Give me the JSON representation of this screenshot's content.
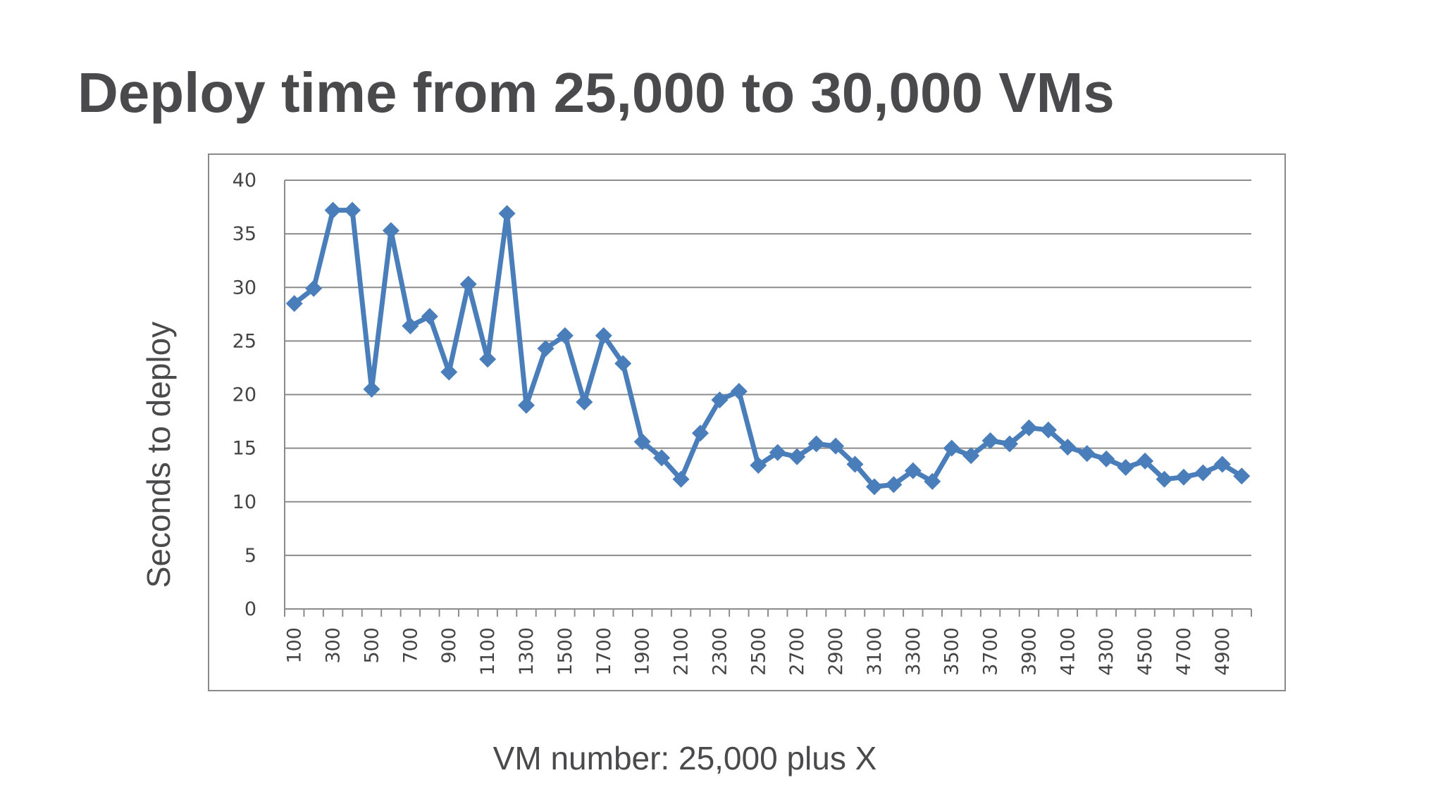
{
  "chart_data": {
    "type": "line",
    "title": "Deploy time from 25,000 to 30,000 VMs",
    "xlabel": "VM number: 25,000 plus X",
    "ylabel": "Seconds to deploy",
    "ylim": [
      0,
      40
    ],
    "yticks": [
      0,
      5,
      10,
      15,
      20,
      25,
      30,
      35,
      40
    ],
    "grid": true,
    "x": [
      100,
      200,
      300,
      400,
      500,
      600,
      700,
      800,
      900,
      1000,
      1100,
      1200,
      1300,
      1400,
      1500,
      1600,
      1700,
      1800,
      1900,
      2000,
      2100,
      2200,
      2300,
      2400,
      2500,
      2600,
      2700,
      2800,
      2900,
      3000,
      3100,
      3200,
      3300,
      3400,
      3500,
      3600,
      3700,
      3800,
      3900,
      4000,
      4100,
      4200,
      4300,
      4400,
      4500,
      4600,
      4700,
      4800,
      4900,
      5000
    ],
    "x_tick_labels": [
      "100",
      "300",
      "500",
      "700",
      "900",
      "1100",
      "1300",
      "1500",
      "1700",
      "1900",
      "2100",
      "2300",
      "2500",
      "2700",
      "2900",
      "3100",
      "3300",
      "3500",
      "3700",
      "3900",
      "4100",
      "4300",
      "4500",
      "4700",
      "4900"
    ],
    "series": [
      {
        "color": "#4a7ebb",
        "marker": "diamond",
        "values": [
          28.5,
          29.9,
          37.2,
          37.2,
          20.5,
          35.3,
          26.4,
          27.3,
          22.1,
          30.3,
          23.3,
          36.9,
          19.0,
          24.3,
          25.5,
          19.3,
          25.5,
          22.9,
          15.6,
          14.1,
          12.1,
          16.4,
          19.5,
          20.3,
          13.4,
          14.6,
          14.2,
          15.4,
          15.2,
          13.5,
          11.4,
          11.6,
          12.9,
          11.9,
          15.0,
          14.3,
          15.7,
          15.4,
          16.9,
          16.7,
          15.1,
          14.5,
          14.0,
          13.2,
          13.8,
          12.1,
          12.3,
          12.7,
          13.5,
          12.4
        ]
      }
    ]
  }
}
